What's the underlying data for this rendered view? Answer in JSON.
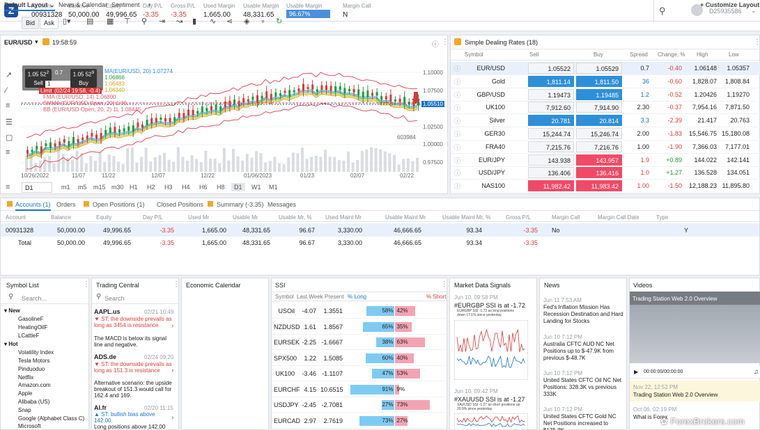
{
  "header": {
    "account": {
      "label": "Account",
      "value": "00931328"
    },
    "balance": {
      "label": "Balance",
      "value": "50,000.00"
    },
    "equity": {
      "label": "Equity",
      "value": "49,996.65"
    },
    "day_pl": {
      "label": "Day P/L",
      "value": "-3.35"
    },
    "gross_pl": {
      "label": "Gross P/L",
      "value": "-3.35"
    },
    "used_margin": {
      "label": "Used Margin",
      "value": "1,665.00"
    },
    "usable_margin": {
      "label": "Usable Margin",
      "value": "48,331.65"
    },
    "usable_margin_pct": {
      "label": "Usable Margin",
      "value": "96.67%",
      "fraction": 0.9667
    },
    "margin_call": {
      "label": "Margin Call",
      "value": "N"
    },
    "user": "D25935586"
  },
  "layout_tabs": {
    "default": "Default Layout",
    "news": "News & Calendar",
    "sentiment": "Sentiment",
    "add": "+",
    "customize": "+ Customize Layout"
  },
  "chart": {
    "symbol": "EUR/USD",
    "time": "19:58:59",
    "bid": "Bid",
    "ask": "Ask",
    "timeframe": "D1",
    "sell_price": "1.05 52",
    "sell_sup": "2",
    "buy_price": "1.05 52",
    "buy_sup": "9",
    "spread": "0.7",
    "qty": "1",
    "sell": "Sell",
    "buy": "Buy",
    "legend": {
      "ma": "MA(EUR/USD, 20) 1.07274",
      "ma_b": "1.06866",
      "ma_c": "1.06483",
      "ma_d": "1.06340",
      "limit": "Limit",
      "limit_info": "(02/24 19:58, -0.4)",
      "l3": "FMA (EUR/USD, 14) 1.06800",
      "l4": "SMMA (EUR/USD Open, 20) 1.06..",
      "l5": "BB (EUR/USD Open, 20, 2) 1L 1.08445"
    },
    "price_ticks": [
      "1.10000",
      "1.07500",
      "1.05510",
      "1.02500",
      "1.00000",
      "0.97500"
    ],
    "current_price": "1.05510",
    "volume_label": "603984",
    "date_ticks": [
      "10/26/2022",
      "11/07",
      "11/22",
      "12/07",
      "12/22",
      "01/06/2023",
      "01/23",
      "02/07",
      "02/22"
    ],
    "timeframes": [
      "m1",
      "m5",
      "m15",
      "m30",
      "H1",
      "H2",
      "H3",
      "H4",
      "H6",
      "H8",
      "D1",
      "W1",
      "M1"
    ],
    "active_timeframe": "D1"
  },
  "rates": {
    "title": "Simple Dealing Rates (18)",
    "columns": [
      "Symbol",
      "Sell",
      "Buy",
      "Spread",
      "Change, %",
      "High",
      "Low"
    ],
    "rows": [
      {
        "symbol": "EUR/USD",
        "sell": "1.05522",
        "buy": "1.05529",
        "spread": "0.7",
        "change": "-0.40",
        "high": "1.06148",
        "low": "1.05357",
        "ss": "n",
        "bs": "n",
        "up": false
      },
      {
        "symbol": "Gold",
        "sell": "1,811.14",
        "buy": "1,811.50",
        "spread": "36",
        "change": "-0.60",
        "high": "1,828.07",
        "low": "1,808.84",
        "ss": "b",
        "bs": "b",
        "up": false
      },
      {
        "symbol": "GBP/USD",
        "sell": "1.19473",
        "buy": "1.19485",
        "spread": "1.2",
        "change": "-0.52",
        "high": "1.20426",
        "low": "1.19270",
        "ss": "n",
        "bs": "b",
        "up": false
      },
      {
        "symbol": "UK100",
        "sell": "7,912.60",
        "buy": "7,914.90",
        "spread": "2.30",
        "change": "-0.37",
        "high": "7,954.16",
        "low": "7,871.50",
        "ss": "n",
        "bs": "n",
        "up": true
      },
      {
        "symbol": "Silver",
        "sell": "20.781",
        "buy": "20.814",
        "spread": "3.3",
        "change": "-2.39",
        "high": "21.417",
        "low": "20.763",
        "ss": "b",
        "bs": "b",
        "up": false
      },
      {
        "symbol": "GER30",
        "sell": "15,244.74",
        "buy": "15,246.74",
        "spread": "2.00",
        "change": "-1.83",
        "high": "15,546.75",
        "low": "15,180.08",
        "ss": "n",
        "bs": "n",
        "up": true
      },
      {
        "symbol": "FRA40",
        "sell": "7,215.76",
        "buy": "7,216.76",
        "spread": "1.00",
        "change": "-1.90",
        "high": "7,366.03",
        "low": "7,177.01",
        "ss": "n",
        "bs": "n",
        "up": true
      },
      {
        "symbol": "EUR/JPY",
        "sell": "143.938",
        "buy": "143.957",
        "spread": "1.9",
        "change": "+0.89",
        "high": "144.022",
        "low": "142.141",
        "ss": "n",
        "bs": "r",
        "up": false
      },
      {
        "symbol": "USD/JPY",
        "sell": "136.406",
        "buy": "136.416",
        "spread": "1.0",
        "change": "+1.27",
        "high": "136.528",
        "low": "134.051",
        "ss": "n",
        "bs": "r",
        "up": false
      },
      {
        "symbol": "NAS100",
        "sell": "11,982.42",
        "buy": "11,983.42",
        "spread": "1.00",
        "change": "-1.50",
        "high": "12,188.23",
        "low": "11,895.80",
        "ss": "r",
        "bs": "r",
        "up": false
      }
    ]
  },
  "accounts": {
    "tabs": [
      "Accounts (1)",
      "Orders",
      "Open Positions (1)",
      "Closed Positions",
      "Summary (-3.35)",
      "Messages"
    ],
    "columns": [
      "Account",
      "Balance",
      "Equity",
      "Day P/L",
      "Used Mr",
      "Usable Mr",
      "Usable Mr, %",
      "Used Maint Mr",
      "Usable Maint Mr",
      "Usable Maint Mr, %",
      "Gross P/L",
      "Margin Call",
      "Margin Call Date",
      "Type"
    ],
    "row": [
      "00931328",
      "50,000.00",
      "49,996.65",
      "-3.35",
      "1,665.00",
      "48,331.65",
      "96.67",
      "3,330.00",
      "46,666.65",
      "93.34",
      "-3.35",
      "No",
      "",
      "Y"
    ],
    "total": [
      "Total",
      "50,000.00",
      "49,996.65",
      "-3.35",
      "1,665.00",
      "48,331.65",
      "96.67",
      "3,330.00",
      "46,666.65",
      "93.34",
      "-3.35"
    ]
  },
  "symbol_list": {
    "title": "Symbol List",
    "search": "Search...",
    "new_label": "New",
    "new_items": [
      "GasolineF",
      "HeatingOilF",
      "LCattleF"
    ],
    "hot_label": "Hot",
    "hot_items": [
      "Volatility Index",
      "Tesla Motors",
      "Pinduoduo",
      "Netflix",
      "Amazon.com",
      "Apple",
      "Alibaba (US)",
      "Snap",
      "Google (Alphabet Class C)",
      "Microsoft"
    ]
  },
  "trading_central": {
    "title": "Trading Central",
    "search": "Search",
    "items": [
      {
        "symbol": "AAPL.us",
        "date": "02/21 10:49",
        "signal": "ST: the downside prevails as long as 3454 is resistance",
        "text": "The MACD is below its signal line and negative."
      },
      {
        "symbol": "ADS.de",
        "date": "02/24 09:20",
        "signal": "ST: the downside prevails as long as 151.3 is resistance",
        "text": "Alternative scenario: the upside breakout of 151.3 would call for 162.4 and 169."
      },
      {
        "symbol": "AI.fr",
        "date": "02/20 11:15",
        "signal": "ST: bullish bias above 142.00.",
        "text": "Long positions above 142.00"
      }
    ]
  },
  "economic_calendar": {
    "title": "Economic Calendar"
  },
  "ssi": {
    "title": "SSI",
    "columns": [
      "Symbol",
      "Last Week",
      "Present",
      "% Long",
      "% Short"
    ],
    "rows": [
      {
        "symbol": "USOil",
        "last": "-4.07",
        "present": "1.3551",
        "long": 58,
        "short": 42,
        "long_label": "58%",
        "short_label": "42%"
      },
      {
        "symbol": "NZDUSD",
        "last": "1.61",
        "present": "1.8567",
        "long": 65,
        "short": 35,
        "long_label": "65%",
        "short_label": "35%"
      },
      {
        "symbol": "EURSEK",
        "last": "-2.25",
        "present": "-1.6667",
        "long": 38,
        "short": 63,
        "long_label": "38%",
        "short_label": "63%"
      },
      {
        "symbol": "SPX500",
        "last": "1.22",
        "present": "1.5085",
        "long": 60,
        "short": 40,
        "long_label": "60%",
        "short_label": "40%"
      },
      {
        "symbol": "UK100",
        "last": "-3.46",
        "present": "-1.1107",
        "long": 47,
        "short": 53,
        "long_label": "47%",
        "short_label": "53%"
      },
      {
        "symbol": "EURCHF",
        "last": "4.15",
        "present": "10.6515",
        "long": 91,
        "short": 9,
        "long_label": "91%",
        "short_label": "9%"
      },
      {
        "symbol": "USDJPY",
        "last": "-2.45",
        "present": "-2.7081",
        "long": 27,
        "short": 73,
        "long_label": "27%",
        "short_label": "73%"
      },
      {
        "symbol": "EURCAD",
        "last": "2.97",
        "present": "2.7619",
        "long": 73,
        "short": 27,
        "long_label": "73%",
        "short_label": "27%"
      }
    ]
  },
  "market_signals": {
    "title": "Market Data Signals",
    "items": [
      {
        "date": "Jun 10, 09:58 PM",
        "headline": "#EURGBP SSI is at -1.72",
        "sub": "EURGBP SSI -1.72 as long positions down 17.1% since yesterday."
      },
      {
        "date": "Jun 10, 09:42 PM",
        "headline": "#XAUUSD SSI is at -1.27",
        "sub": "XAUUSD SSI -1.27 as short positions up 20.9% since yesterday."
      }
    ]
  },
  "news": {
    "title": "News",
    "items": [
      {
        "date": "Jun 11 7:53 AM",
        "text": "Fed's Inflation Mission Has Recession Destination and Hard Landing for Stocks"
      },
      {
        "date": "Jun 10 7:12 PM",
        "text": "Australia CFTC AUD NC Net Positions up to $-47.9K from previous $-48.7K"
      },
      {
        "date": "Jun 10 7:12 PM",
        "text": "United States CFTC Oil NC Net Positions: 328.3K vs previous 333K"
      },
      {
        "date": "Jun 10 7:12 PM",
        "text": "United States CFTC Gold NC Net Positions increased to $175.3K"
      }
    ]
  },
  "videos": {
    "title": "Videos",
    "banner": "Trading Station Web 2.0 Overview",
    "time": "00:00:00/00:00:00",
    "items": [
      {
        "date": "Nov 22, 12:52 PM",
        "title": "Trading Station Web 2.0 Overview"
      },
      {
        "date": "Oct 06, 02:19 PM",
        "title": "What is Forex"
      }
    ]
  },
  "watermark": "ForexBrokers.com",
  "colors": {
    "accent": "#2e8fd9",
    "sell_red": "#f04a66",
    "negative": "#e23a3a",
    "positive": "#1e9c3a",
    "panel_bg": "#ffffff",
    "ssi_long": "#7ecbf2",
    "ssi_short": "#f4a3b3",
    "dealing_icon": "#f5a623"
  }
}
